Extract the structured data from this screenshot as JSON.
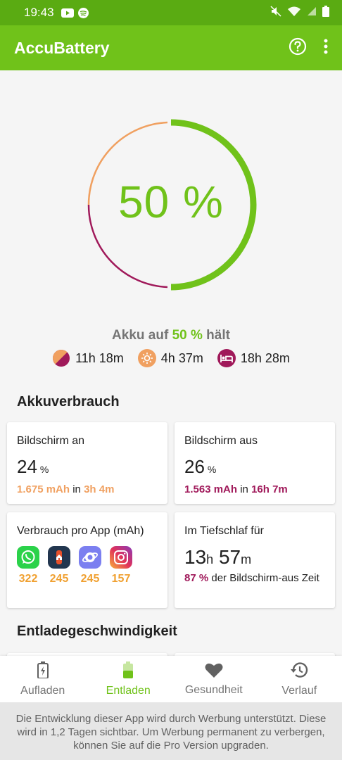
{
  "status_bar": {
    "time": "19:43"
  },
  "app_bar": {
    "title": "AccuBattery"
  },
  "gauge": {
    "percent_text": "50 %",
    "level": 0.5
  },
  "holds": {
    "prefix": "Akku auf",
    "percent": "50 %",
    "suffix": "hält"
  },
  "estimates": [
    {
      "value": "11h 18m",
      "icon": "mixed-usage-icon"
    },
    {
      "value": "4h 37m",
      "icon": "screen-on-icon"
    },
    {
      "value": "18h 28m",
      "icon": "sleep-icon"
    }
  ],
  "usage": {
    "title": "Akkuverbrauch",
    "screen_on": {
      "label": "Bildschirm an",
      "value": "24",
      "unit": "%",
      "mah": "1.675 mAh",
      "in": "in",
      "time": "3h 4m"
    },
    "screen_off": {
      "label": "Bildschirm aus",
      "value": "26",
      "unit": "%",
      "mah": "1.563 mAh",
      "in": "in",
      "time": "16h 7m"
    },
    "per_app": {
      "label": "Verbrauch pro App (mAh)",
      "values": [
        "322",
        "245",
        "245",
        "157"
      ]
    },
    "deep_sleep": {
      "label": "Im Tiefschlaf für",
      "hours": "13",
      "h": "h",
      "minutes": "57",
      "m": "m",
      "pct": "87 %",
      "text": "der Bildschirm-aus Zeit"
    }
  },
  "discharge": {
    "title": "Entladegeschwindigkeit"
  },
  "nav": {
    "items": [
      {
        "label": "Aufladen"
      },
      {
        "label": "Entladen"
      },
      {
        "label": "Gesundheit"
      },
      {
        "label": "Verlauf"
      }
    ]
  },
  "ad_note": "Die Entwicklung dieser App wird durch Werbung unterstützt. Diese wird in 1,2 Tagen sichtbar. Um Werbung permanent zu verbergen, können Sie auf die Pro Version upgraden.",
  "colors": {
    "accent": "#70c21a",
    "status_bar": "#5aab12",
    "orange": "#f0a060",
    "purple": "#a0195a"
  }
}
